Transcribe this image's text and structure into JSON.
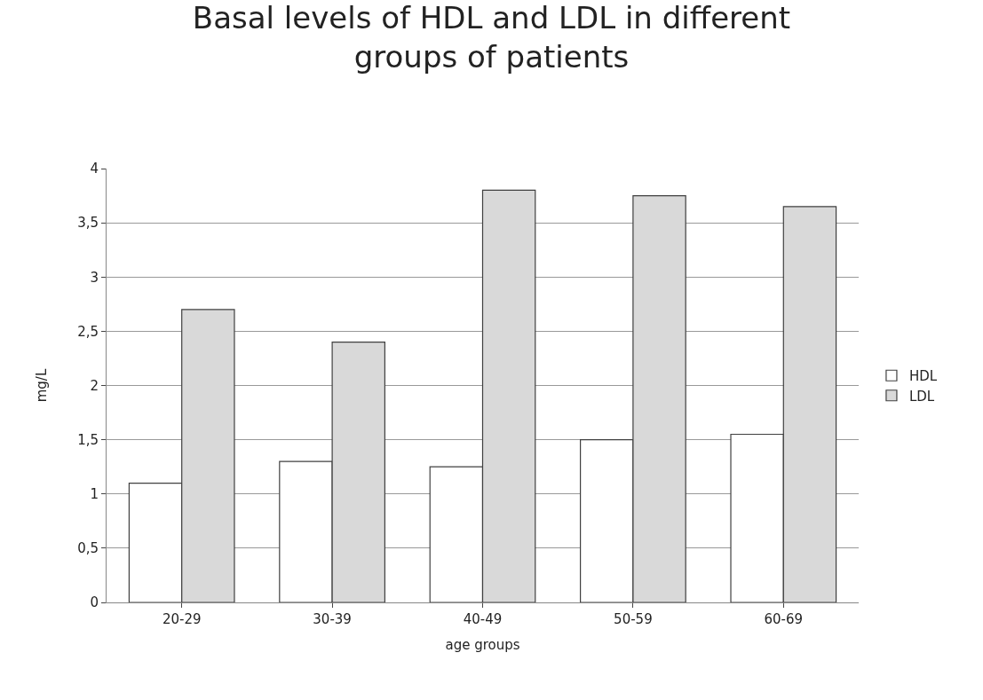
{
  "chart_data": {
    "type": "bar",
    "title": "Basal levels of HDL and LDL in different groups of patients",
    "xlabel": "age groups",
    "ylabel": "mg/L",
    "categories": [
      "20-29",
      "30-39",
      "40-49",
      "50-59",
      "60-69"
    ],
    "series": [
      {
        "name": "HDL",
        "color": "#ffffff",
        "values": [
          1.1,
          1.3,
          1.25,
          1.5,
          1.55
        ]
      },
      {
        "name": "LDL",
        "color": "#d9d9d9",
        "values": [
          2.7,
          2.4,
          3.8,
          3.75,
          3.65
        ]
      }
    ],
    "ylim": [
      0,
      4
    ],
    "yticks": [
      0,
      {
        "value": 0.5,
        "label": "0,5"
      },
      1,
      {
        "value": 1.5,
        "label": "1,5"
      },
      2,
      {
        "value": 2.5,
        "label": "2,5"
      },
      3,
      {
        "value": 3.5,
        "label": "3,5"
      },
      4
    ],
    "grid": "y",
    "legend": "right"
  }
}
